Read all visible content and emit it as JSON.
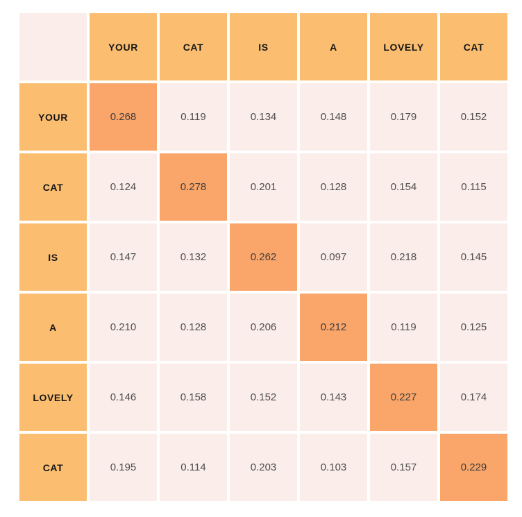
{
  "chart_data": {
    "type": "heatmap",
    "title": "",
    "description": "Token-to-token attention score matrix for the sentence YOUR CAT IS A LOVELY CAT; diagonal (self) cells highlighted",
    "col_tokens": [
      "YOUR",
      "CAT",
      "IS",
      "A",
      "LOVELY",
      "CAT"
    ],
    "row_tokens": [
      "YOUR",
      "CAT",
      "IS",
      "A",
      "LOVELY",
      "CAT"
    ],
    "matrix": [
      [
        "0.268",
        "0.119",
        "0.134",
        "0.148",
        "0.179",
        "0.152"
      ],
      [
        "0.124",
        "0.278",
        "0.201",
        "0.128",
        "0.154",
        "0.115"
      ],
      [
        "0.147",
        "0.132",
        "0.262",
        "0.097",
        "0.218",
        "0.145"
      ],
      [
        "0.210",
        "0.128",
        "0.206",
        "0.212",
        "0.119",
        "0.125"
      ],
      [
        "0.146",
        "0.158",
        "0.152",
        "0.143",
        "0.227",
        "0.174"
      ],
      [
        "0.195",
        "0.114",
        "0.203",
        "0.103",
        "0.157",
        "0.229"
      ]
    ],
    "highlight": "diagonal",
    "legend_position": "none",
    "grid": "white-gaps",
    "colors": {
      "header_bg": "#FBBE70",
      "diagonal_bg": "#FAA569",
      "cell_bg": "#FBEDE9",
      "background": "#FFFFFF",
      "header_text": "#161616",
      "value_text": "#4F4F4F"
    }
  }
}
